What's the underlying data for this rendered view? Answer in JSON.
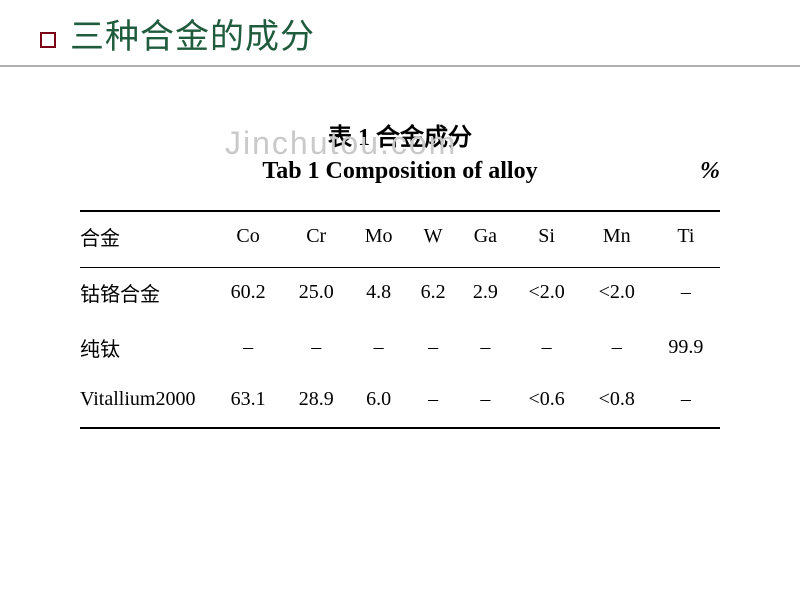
{
  "slide": {
    "title": "三种合金的成分",
    "title_color": "#1f5b3d",
    "bullet_border_color": "#7a0019"
  },
  "watermark": {
    "text": "Jinchutou.com",
    "color": "#c9c9c9"
  },
  "table": {
    "caption_cn": "表 1  合金成分",
    "caption_en": "Tab 1  Composition of alloy",
    "unit": "%",
    "columns": [
      "合金",
      "Co",
      "Cr",
      "Mo",
      "W",
      "Ga",
      "Si",
      "Mn",
      "Ti"
    ],
    "rows": [
      {
        "name": "钴铬合金",
        "cells": [
          "60.2",
          "25.0",
          "4.8",
          "6.2",
          "2.9",
          "<2.0",
          "<2.0",
          "–"
        ]
      },
      {
        "name": "纯钛",
        "cells": [
          "–",
          "–",
          "–",
          "–",
          "–",
          "–",
          "–",
          "99.9"
        ]
      },
      {
        "name": "Vitallium2000",
        "cells": [
          "63.1",
          "28.9",
          "6.0",
          "–",
          "–",
          "<0.6",
          "<0.8",
          "–"
        ]
      }
    ],
    "line_color": "#000000",
    "font_size_pt": 15
  }
}
